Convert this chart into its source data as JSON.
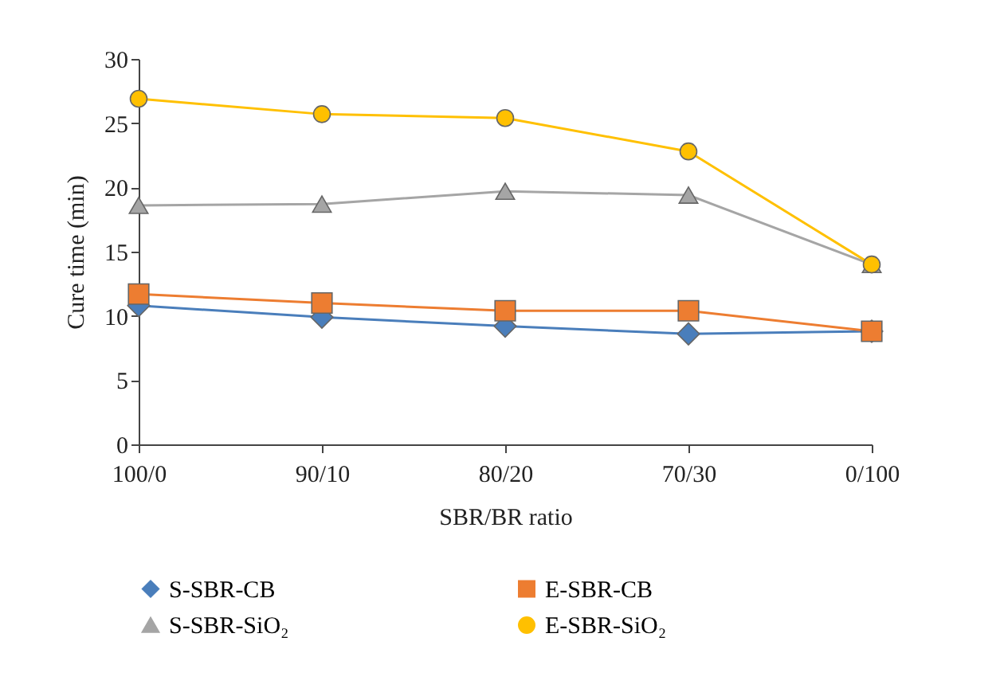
{
  "chart_data": {
    "type": "line",
    "xlabel": "SBR/BR ratio",
    "ylabel": "Cure time (min)",
    "categories": [
      "100/0",
      "90/10",
      "80/20",
      "70/30",
      "0/100"
    ],
    "series": [
      {
        "name": "S-SBR-CB",
        "color": "#4a7ebb",
        "marker": "diamond",
        "values": [
          10.8,
          9.9,
          9.2,
          8.6,
          8.8
        ]
      },
      {
        "name": "E-SBR-CB",
        "color": "#ed7d31",
        "marker": "square",
        "values": [
          11.7,
          11.0,
          10.4,
          10.4,
          8.8
        ]
      },
      {
        "name": "S-SBR-SiO₂",
        "color": "#a5a5a5",
        "marker": "triangle",
        "values": [
          18.6,
          18.7,
          19.7,
          19.4,
          14.0
        ]
      },
      {
        "name": "E-SBR-SiO₂",
        "color": "#ffc000",
        "marker": "circle",
        "values": [
          26.9,
          25.7,
          25.4,
          22.8,
          14.0
        ]
      }
    ],
    "ylim": [
      0,
      30
    ],
    "yticks": [
      0,
      5,
      10,
      15,
      20,
      25,
      30
    ],
    "grid": false,
    "legend": "bottom",
    "line_style": "solid"
  }
}
